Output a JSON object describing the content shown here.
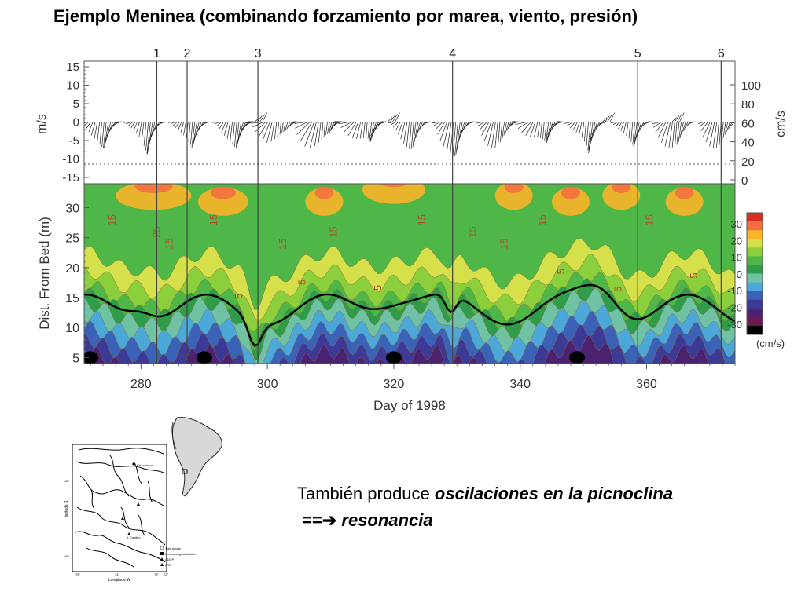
{
  "slide": {
    "title": "Ejemplo Meninea (combinando forzamiento por marea, viento, presión)",
    "note_line1_plain": "También produce ",
    "note_line1_emph": "oscilaciones en la picnoclina",
    "note_line2_arrow": "==➔",
    "note_line2_emph": "resonancia"
  },
  "chart_data": [
    {
      "type": "line",
      "subtype": "wind-stick",
      "ylabel": "m/s",
      "ylabel_right": "cm/s",
      "yticks": [
        "15",
        "10",
        "5",
        "0",
        "-5",
        "-10",
        "-15"
      ],
      "yticks_right": [
        "100",
        "80",
        "60",
        "40",
        "20",
        "0"
      ],
      "ylim": [
        -15,
        15
      ],
      "dotted_reference_y": -10,
      "event_markers": [
        {
          "label": "1",
          "day": 282.5
        },
        {
          "label": "2",
          "day": 287.3
        },
        {
          "label": "3",
          "day": 298.5
        },
        {
          "label": "4",
          "day": 329.3
        },
        {
          "label": "5",
          "day": 358.6
        },
        {
          "label": "6",
          "day": 371.8
        }
      ]
    },
    {
      "type": "heatmap",
      "subtype": "filled-contour",
      "xlabel": "Day of 1998",
      "ylabel": "Dist. From Bed (m)",
      "xticks": [
        "280",
        "300",
        "320",
        "340",
        "360"
      ],
      "xlim": [
        271,
        374
      ],
      "yticks": [
        "30",
        "25",
        "20",
        "15",
        "10",
        "5"
      ],
      "ylim": [
        4,
        34
      ],
      "colorbar": {
        "ticks": [
          "30",
          "20",
          "10",
          "0",
          "-10",
          "-20",
          "-30"
        ],
        "unit": "(cm/s)",
        "colors": [
          "#d7301f",
          "#f46d43",
          "#f9b428",
          "#d6e04a",
          "#8ccf3c",
          "#4eb748",
          "#2f9c4a",
          "#6fc2a4",
          "#4ba8d8",
          "#3a63b8",
          "#3c3a96",
          "#4b2270",
          "#6e1a50",
          "#000000"
        ]
      },
      "contour_labels": [
        "15",
        "25",
        "15",
        "15",
        "5",
        "15",
        "5",
        "15",
        "5",
        "15",
        "15",
        "15",
        "15",
        "5",
        "5",
        "15",
        "5"
      ]
    }
  ],
  "map_inset": {
    "ylabel": "latitude S",
    "xlabel": "Longitude W",
    "xticks": [
      "75°",
      "74°",
      "73°",
      "72°"
    ],
    "yticks": [
      "45°",
      "46°"
    ],
    "legend": [
      "Tide gauge",
      "Meteorological station",
      "ADCP",
      "CTD"
    ],
    "place_labels": [
      "Chacabuco",
      "I. Castillo"
    ]
  }
}
